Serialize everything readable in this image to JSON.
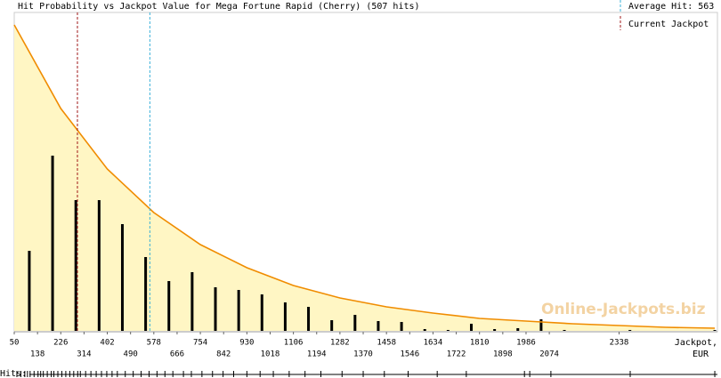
{
  "chart_data": {
    "type": "bar",
    "title": "Hit Probability vs Jackpot Value for Mega Fortune Rapid (Cherry) (507 hits)",
    "x_label": "Jackpot,",
    "x_unit": "EUR",
    "x": [
      107,
      195,
      283,
      371,
      459,
      547,
      635,
      723,
      811,
      899,
      987,
      1075,
      1163,
      1251,
      1339,
      1427,
      1515,
      1603,
      1691,
      1779,
      1867,
      1955,
      2043,
      2131,
      2379,
      2700
    ],
    "values": [
      90,
      197,
      147,
      147,
      120,
      83,
      56,
      66,
      49,
      46,
      41,
      32,
      27,
      12,
      18,
      11,
      10,
      2,
      1,
      8,
      2,
      3,
      13,
      1,
      1,
      1
    ],
    "color": "#000000",
    "curve_x": [
      50,
      226,
      402,
      578,
      754,
      930,
      1106,
      1282,
      1458,
      1634,
      1810,
      1986,
      2162,
      2338,
      2514,
      2700
    ],
    "curve_values": [
      344,
      250,
      182,
      133,
      97,
      71,
      51,
      37,
      27,
      20,
      14,
      11,
      8,
      6,
      4,
      3
    ],
    "curve_color": "#f08c00",
    "curve_fill": "#fff6c4",
    "xlim": [
      50,
      2710
    ],
    "ylim": [
      0,
      344
    ],
    "xticks": [
      50,
      138,
      226,
      314,
      402,
      490,
      578,
      666,
      754,
      842,
      930,
      1018,
      1106,
      1194,
      1282,
      1370,
      1458,
      1546,
      1634,
      1722,
      1810,
      1898,
      1986,
      2074,
      2338
    ],
    "average_label": "Average Hit: 563",
    "average": 563,
    "average_color": "#3ab0d8",
    "current_label": "Current Jackpot",
    "current_jackpot": 289,
    "current_color": "#a01818",
    "watermark": "Online-Jackpots.biz",
    "hits_label": "Hits:",
    "hits": [
      60,
      75,
      90,
      100,
      110,
      125,
      140,
      150,
      160,
      175,
      190,
      200,
      215,
      230,
      245,
      260,
      275,
      290,
      300,
      320,
      340,
      360,
      380,
      400,
      420,
      440,
      470,
      500,
      530,
      560,
      590,
      620,
      650,
      690,
      720,
      760,
      800,
      840,
      880,
      930,
      980,
      1030,
      1090,
      1150,
      1210,
      1290,
      1370,
      1450,
      1540,
      1650,
      1760,
      1980,
      2000,
      2080,
      2380,
      2700
    ]
  }
}
